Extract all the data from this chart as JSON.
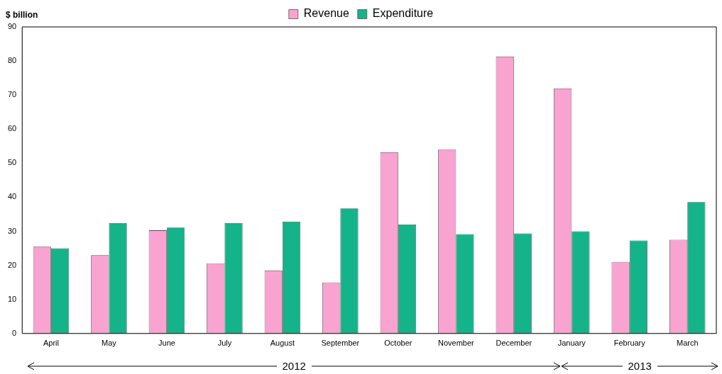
{
  "chart_data": {
    "type": "bar",
    "ylabel": "$ billion",
    "categories": [
      "April",
      "May",
      "June",
      "July",
      "August",
      "September",
      "October",
      "November",
      "December",
      "January",
      "February",
      "March"
    ],
    "series": [
      {
        "name": "Revenue",
        "color": "#f9a3d0",
        "values": [
          25.5,
          23,
          30.3,
          20.6,
          18.5,
          15,
          53.2,
          54.1,
          81.3,
          71.9,
          21,
          27.5
        ]
      },
      {
        "name": "Expenditure",
        "color": "#14b389",
        "values": [
          25,
          32.4,
          31.1,
          32.4,
          32.8,
          36.7,
          32,
          29.2,
          29.4,
          30,
          27.3,
          38.6
        ]
      }
    ],
    "ylim": [
      0,
      90
    ],
    "yticks": [
      0,
      10,
      20,
      30,
      40,
      50,
      60,
      70,
      80,
      90
    ],
    "grid": false,
    "legend": "top",
    "annotations": [
      "2012",
      "2013"
    ]
  }
}
